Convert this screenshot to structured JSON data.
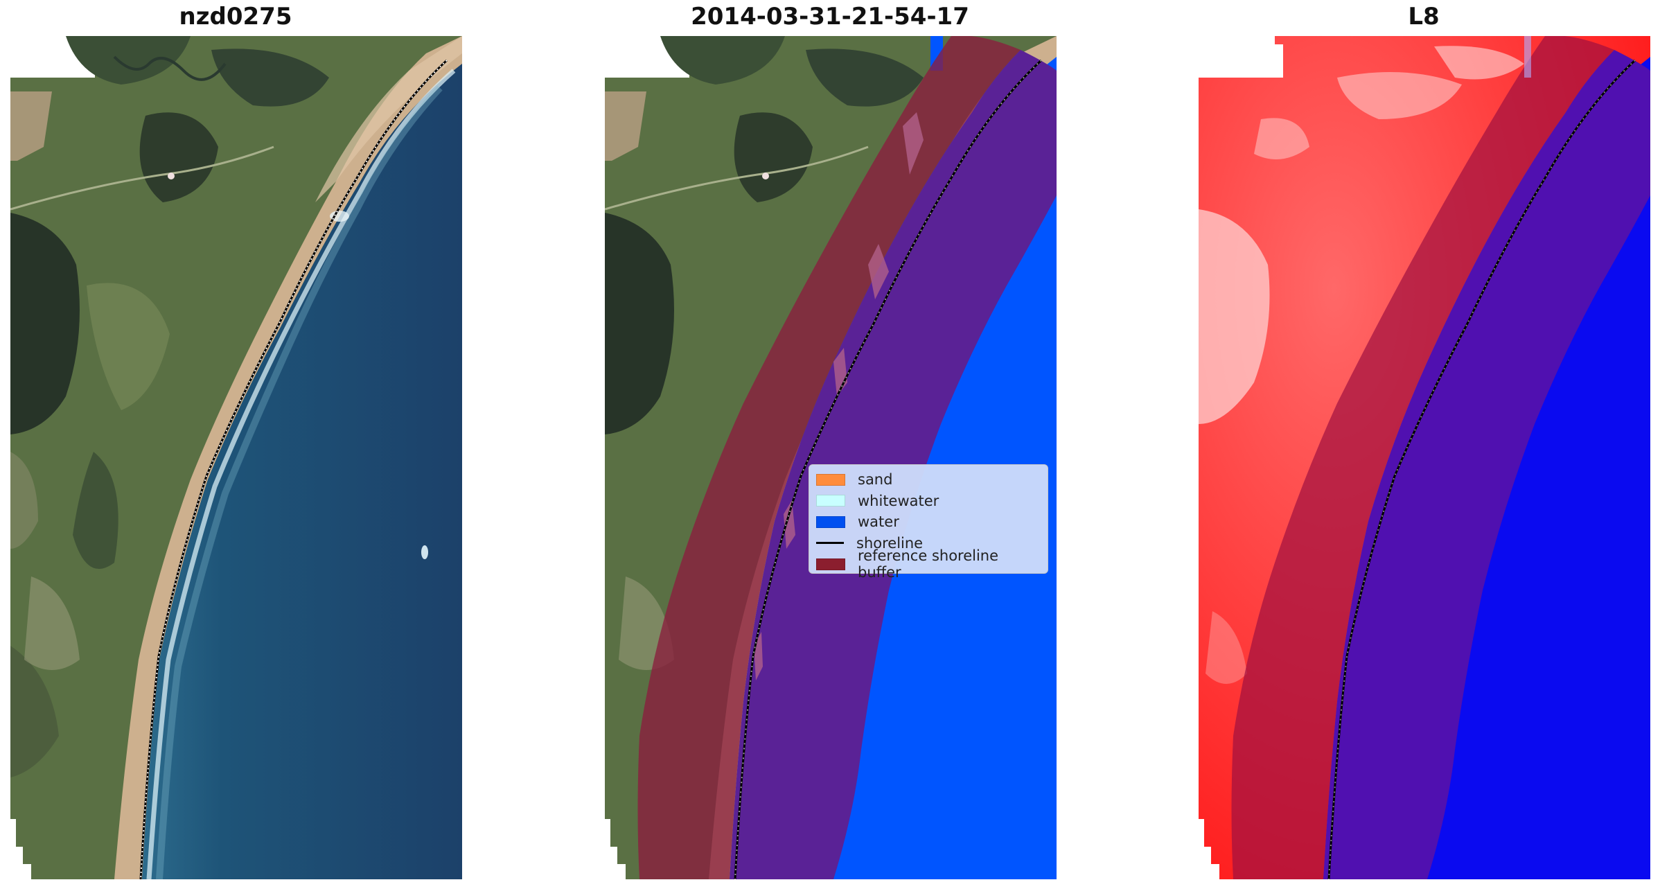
{
  "panels": [
    {
      "title": "nzd0275",
      "kind": "rgb"
    },
    {
      "title": "2014-03-31-21-54-17",
      "kind": "classified"
    },
    {
      "title": "L8",
      "kind": "index"
    }
  ],
  "legend": {
    "items": [
      {
        "label": "sand",
        "color": "#ff8c3c",
        "type": "patch"
      },
      {
        "label": "whitewater",
        "color": "#c8ffff",
        "type": "patch"
      },
      {
        "label": "water",
        "color": "#0050f0",
        "type": "patch"
      },
      {
        "label": "shoreline",
        "color": "#000000",
        "type": "line"
      },
      {
        "label": "reference shoreline buffer",
        "color": "#8b1e2e",
        "type": "patch"
      }
    ]
  },
  "colors": {
    "land": "#566e40",
    "forest": "#2b3a2f",
    "sea": "#1c4a72",
    "sand": "#cdb08e",
    "water_class": "#0055ff",
    "buffer": "#8b1e3e",
    "index_land": "#ff1c1c",
    "index_water": "#0a0af0"
  }
}
